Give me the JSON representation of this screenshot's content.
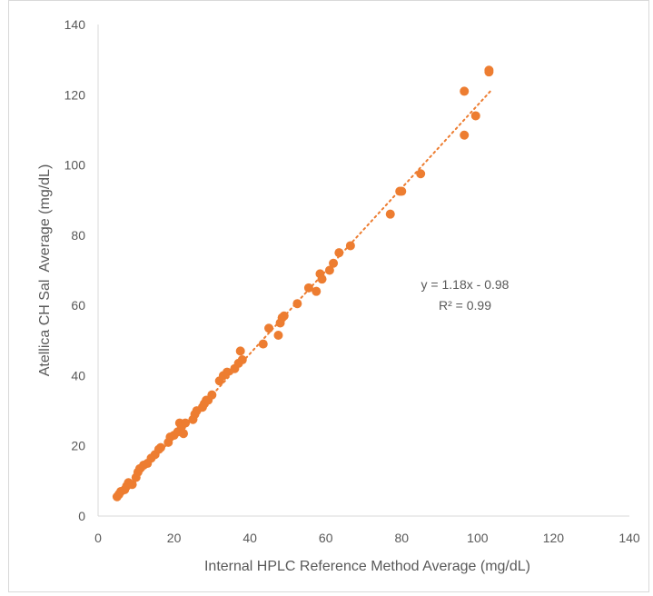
{
  "chart_data": {
    "type": "scatter",
    "title": "",
    "xlabel": "Internal HPLC Reference Method Average (mg/dL)",
    "ylabel": "Atellica CH Sal  Average (mg/dL)",
    "xlim": [
      0,
      140
    ],
    "ylim": [
      0,
      140
    ],
    "xticks": [
      "0",
      "20",
      "40",
      "60",
      "80",
      "100",
      "120",
      "140"
    ],
    "yticks": [
      "0",
      "20",
      "40",
      "60",
      "80",
      "100",
      "120",
      "140"
    ],
    "grid": false,
    "legend": "none",
    "marker_color": "#ED7D31",
    "trendline_color": "#ED7D31",
    "trendline": {
      "slope": 1.18,
      "intercept": -0.98,
      "x_range": [
        5,
        103.5
      ]
    },
    "annotations": {
      "equation": "y = 1.18x - 0.98",
      "r_squared": "R² = 0.99"
    },
    "series": [
      {
        "points": [
          [
            5,
            5.5
          ],
          [
            5.5,
            6.2
          ],
          [
            6,
            7
          ],
          [
            7,
            7.5
          ],
          [
            7.5,
            8.5
          ],
          [
            8,
            9.5
          ],
          [
            9,
            9
          ],
          [
            10,
            11
          ],
          [
            10.5,
            12.5
          ],
          [
            11,
            13.5
          ],
          [
            12,
            14.5
          ],
          [
            13,
            15
          ],
          [
            14,
            16.5
          ],
          [
            15,
            17.5
          ],
          [
            16,
            19
          ],
          [
            16.5,
            19.5
          ],
          [
            18.5,
            21
          ],
          [
            19,
            22.5
          ],
          [
            20,
            23
          ],
          [
            21,
            24
          ],
          [
            21.5,
            26.5
          ],
          [
            22,
            25.5
          ],
          [
            22.5,
            23.5
          ],
          [
            23,
            26.5
          ],
          [
            25,
            27.5
          ],
          [
            25.5,
            29
          ],
          [
            26,
            30
          ],
          [
            27.5,
            31
          ],
          [
            28,
            32
          ],
          [
            28.5,
            33
          ],
          [
            29,
            33
          ],
          [
            30,
            34.5
          ],
          [
            32,
            38.5
          ],
          [
            33,
            40
          ],
          [
            34,
            41
          ],
          [
            36,
            42
          ],
          [
            37,
            43.5
          ],
          [
            38,
            44.5
          ],
          [
            37.5,
            47
          ],
          [
            43.5,
            49
          ],
          [
            45,
            53.5
          ],
          [
            47.5,
            51.5
          ],
          [
            48,
            55
          ],
          [
            48.5,
            56.5
          ],
          [
            49,
            57
          ],
          [
            52.5,
            60.5
          ],
          [
            55.5,
            65
          ],
          [
            57.5,
            64
          ],
          [
            58.5,
            69
          ],
          [
            59,
            67.5
          ],
          [
            61,
            70
          ],
          [
            62,
            72
          ],
          [
            63.5,
            75
          ],
          [
            66.5,
            77
          ],
          [
            77,
            86
          ],
          [
            79.5,
            92.5
          ],
          [
            80,
            92.5
          ],
          [
            85,
            97.5
          ],
          [
            96.5,
            121
          ],
          [
            96.5,
            108.5
          ],
          [
            99.5,
            114
          ],
          [
            103,
            127
          ],
          [
            103,
            126.5
          ]
        ]
      }
    ]
  }
}
